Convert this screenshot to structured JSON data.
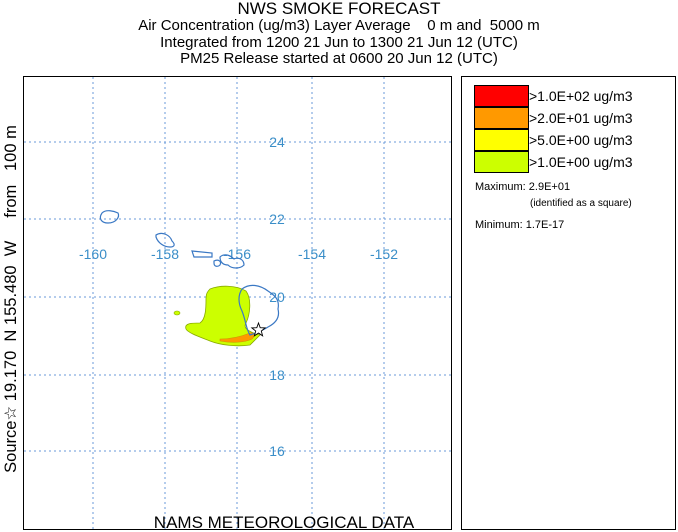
{
  "header": {
    "title": "NWS SMOKE FORECAST",
    "line2": "Air Concentration (ug/m3) Layer Average    0 m and  5000 m",
    "line3": "Integrated from 1200 21 Jun to 1300 21 Jun 12 (UTC)",
    "line4": "PM25 Release started at 0600 20 Jun 12 (UTC)"
  },
  "side_label": "Source☆ 19.170  N 155.480  W     from   100 m",
  "bottom_label": "NAMS METEOROLOGICAL DATA",
  "map": {
    "longitude_labels": [
      "-160",
      "-158",
      "-156",
      "-154",
      "-152"
    ],
    "latitude_labels": [
      "24",
      "22",
      "20",
      "18",
      "16"
    ],
    "coastline_color": "#3a78c4",
    "grid_color": "#6a9ad8",
    "label_color": "#3a8ec8",
    "source_marker": "star-icon",
    "source_lat": 19.17,
    "source_lon": -155.48
  },
  "legend": {
    "items": [
      {
        "label": ">1.0E+02 ug/m3",
        "color": "#ff0000"
      },
      {
        "label": ">2.0E+01 ug/m3",
        "color": "#ff9900"
      },
      {
        "label": ">5.0E+00 ug/m3",
        "color": "#ffff00"
      },
      {
        "label": ">1.0E+00 ug/m3",
        "color": "#ccff00"
      }
    ],
    "maximum": "Maximum: 2.9E+01",
    "maximum_note": "(identified as a square)",
    "minimum": "Minimum: 1.7E-17"
  }
}
